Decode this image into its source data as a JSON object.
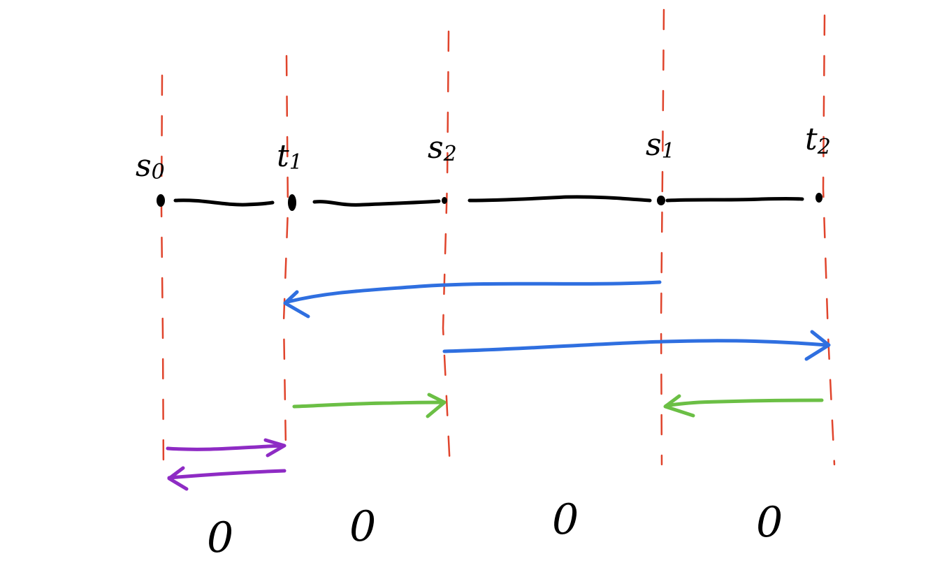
{
  "colors": {
    "ink": "#000000",
    "guide": "#e0442c",
    "blue": "#2f6fe0",
    "green": "#6bbf45",
    "purple": "#8e2bc4"
  },
  "points": [
    {
      "id": "s0",
      "label": "s",
      "sub": "0"
    },
    {
      "id": "t1",
      "label": "t",
      "sub": "1"
    },
    {
      "id": "s2",
      "label": "s",
      "sub": "2"
    },
    {
      "id": "s1",
      "label": "s",
      "sub": "1"
    },
    {
      "id": "t2",
      "label": "t",
      "sub": "2"
    }
  ],
  "segment_values": [
    "0",
    "0",
    "0",
    "0"
  ],
  "arrows": [
    {
      "color": "blue",
      "from": "s1",
      "to": "t1"
    },
    {
      "color": "blue",
      "from": "s2",
      "to": "t2"
    },
    {
      "color": "green",
      "from": "t1",
      "to": "s2"
    },
    {
      "color": "green",
      "from": "t2",
      "to": "s1"
    },
    {
      "color": "purple",
      "from": "s0",
      "to": "t1"
    },
    {
      "color": "purple",
      "from": "t1",
      "to": "s0"
    }
  ]
}
